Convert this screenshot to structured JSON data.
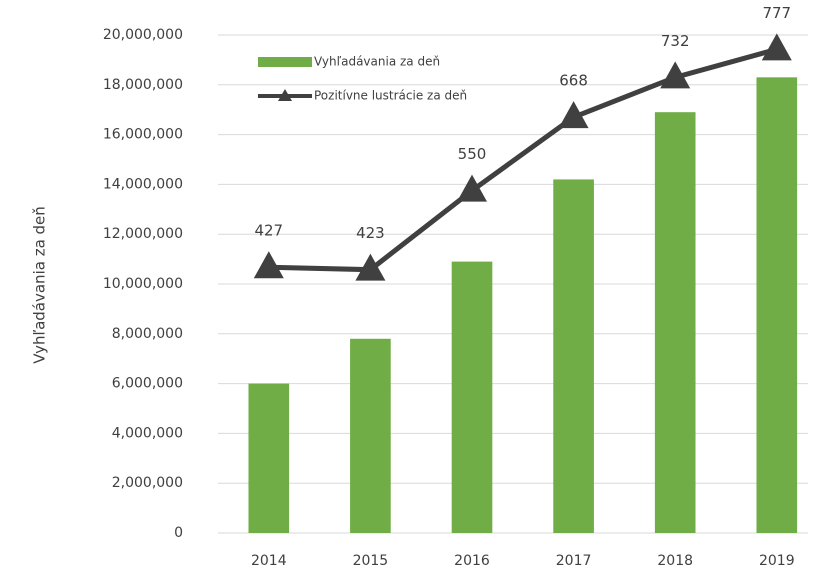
{
  "chart_data": {
    "type": "bar_line",
    "y_axis_label": "Vyhľadávania za deň",
    "categories": [
      "2014",
      "2015",
      "2016",
      "2017",
      "2018",
      "2019"
    ],
    "series": [
      {
        "name": "Vyhľadávania za deň",
        "type": "bar",
        "color": "#70ad47",
        "values": [
          6000000,
          7800000,
          10900000,
          14200000,
          16900000,
          18300000
        ]
      },
      {
        "name": "Pozitívne lustrácie za deň",
        "type": "line",
        "axis": "y2",
        "color": "#404040",
        "values": [
          427,
          423,
          550,
          668,
          732,
          777
        ]
      }
    ],
    "ylim": [
      0,
      20000000
    ],
    "yticks": [
      0,
      {
        "value": 2000000,
        "label": "2,000,000"
      },
      {
        "value": 4000000,
        "label": "4,000,000"
      },
      {
        "value": 6000000,
        "label": "6,000,000"
      },
      {
        "value": 8000000,
        "label": "8,000,000"
      },
      {
        "value": 10000000,
        "label": "10,000,000"
      },
      {
        "value": 12000000,
        "label": "12,000,000"
      },
      {
        "value": 14000000,
        "label": "14,000,000"
      },
      {
        "value": 16000000,
        "label": "16,000,000"
      },
      {
        "value": 18000000,
        "label": "18,000,000"
      },
      {
        "value": 20000000,
        "label": "20,000,000"
      }
    ],
    "y2lim": [
      0,
      800
    ],
    "grid": true,
    "legend": "top-left"
  }
}
